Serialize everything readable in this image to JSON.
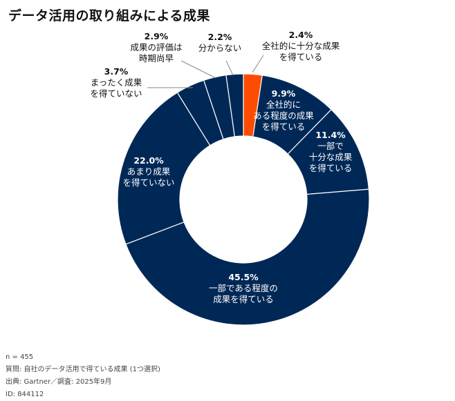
{
  "title": "データ活用の取り組みによる成果",
  "chart_data": {
    "type": "pie",
    "donut": true,
    "legend": "none",
    "slices": [
      {
        "percent": "2.4%",
        "value": 2.4,
        "label": [
          "全社的に十分な成果",
          "を得ている"
        ],
        "color": "#fc4c02"
      },
      {
        "percent": "9.9%",
        "value": 9.9,
        "label": [
          "全社的に",
          "ある程度の成果",
          "を得ている"
        ],
        "color": "#002856"
      },
      {
        "percent": "11.4%",
        "value": 11.4,
        "label": [
          "一部で",
          "十分な成果",
          "を得ている"
        ],
        "color": "#002856"
      },
      {
        "percent": "45.5%",
        "value": 45.5,
        "label": [
          "一部である程度の",
          "成果を得ている"
        ],
        "color": "#002856"
      },
      {
        "percent": "22.0%",
        "value": 22.0,
        "label": [
          "あまり成果",
          "を得ていない"
        ],
        "color": "#002856"
      },
      {
        "percent": "3.7%",
        "value": 3.7,
        "label": [
          "まったく成果",
          "を得ていない"
        ],
        "color": "#002856"
      },
      {
        "percent": "2.9%",
        "value": 2.9,
        "label": [
          "成果の評価は",
          "時期尚早"
        ],
        "color": "#002856"
      },
      {
        "percent": "2.2%",
        "value": 2.2,
        "label": [
          "分からない"
        ],
        "color": "#002856"
      }
    ]
  },
  "notes": {
    "n": "n = 455",
    "question": "質問: 自社のデータ活用で得ている成果 (1つ選択)",
    "source": "出典: Gartner／調査: 2025年9月",
    "id": "ID: 844112"
  }
}
